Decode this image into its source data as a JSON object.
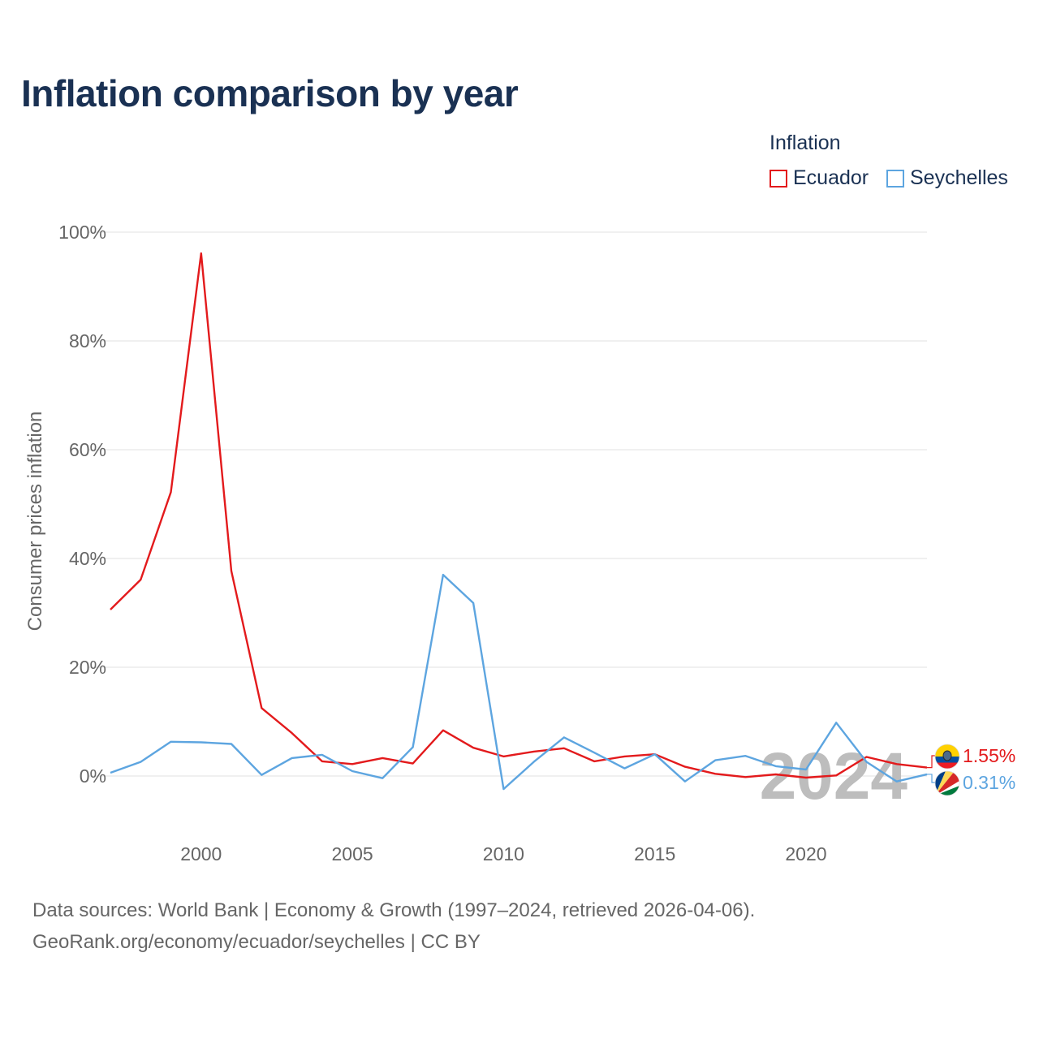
{
  "chart_data": {
    "type": "line",
    "title": "Inflation comparison by year",
    "legend_title": "Inflation",
    "ylabel": "Consumer prices inflation",
    "xlabel": "",
    "xlim": [
      1997,
      2024
    ],
    "ylim": [
      -10,
      100
    ],
    "x_ticks": [
      2000,
      2005,
      2010,
      2015,
      2020
    ],
    "x_tick_labels": [
      "2000",
      "2005",
      "2010",
      "2015",
      "2020"
    ],
    "y_ticks": [
      0,
      20,
      40,
      60,
      80,
      100
    ],
    "y_tick_labels": [
      "0%",
      "20%",
      "40%",
      "60%",
      "80%",
      "100%"
    ],
    "grid": true,
    "legend_position": "top-right",
    "current_year": "2024",
    "x": [
      1997,
      1998,
      1999,
      2000,
      2001,
      2002,
      2003,
      2004,
      2005,
      2006,
      2007,
      2008,
      2009,
      2010,
      2011,
      2012,
      2013,
      2014,
      2015,
      2016,
      2017,
      2018,
      2019,
      2020,
      2021,
      2022,
      2023,
      2024
    ],
    "series": [
      {
        "name": "Ecuador",
        "color": "#e31a1c",
        "end_label": "1.55%",
        "flag_icon": "ecuador-flag-icon",
        "values": [
          30.6,
          36.1,
          52.2,
          96.1,
          37.7,
          12.5,
          7.9,
          2.7,
          2.2,
          3.3,
          2.3,
          8.4,
          5.2,
          3.6,
          4.5,
          5.1,
          2.7,
          3.6,
          4.0,
          1.7,
          0.4,
          -0.2,
          0.3,
          -0.3,
          0.1,
          3.5,
          2.2,
          1.55
        ]
      },
      {
        "name": "Seychelles",
        "color": "#5da5e0",
        "end_label": "0.31%",
        "flag_icon": "seychelles-flag-icon",
        "values": [
          0.6,
          2.6,
          6.3,
          6.2,
          5.9,
          0.2,
          3.3,
          3.9,
          0.9,
          -0.4,
          5.3,
          37.0,
          31.8,
          -2.4,
          2.6,
          7.1,
          4.3,
          1.4,
          4.0,
          -1.0,
          2.9,
          3.7,
          1.8,
          1.2,
          9.8,
          2.6,
          -1.0,
          0.31
        ]
      }
    ]
  },
  "footer": {
    "line1": "Data sources: World Bank | Economy & Growth (1997–2024, retrieved 2026-04-06).",
    "line2": "GeoRank.org/economy/ecuador/seychelles | CC BY"
  }
}
